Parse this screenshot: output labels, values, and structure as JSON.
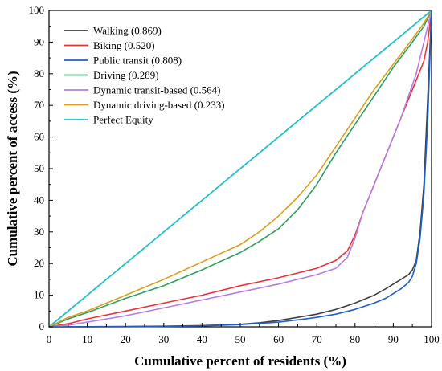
{
  "chart_data": {
    "type": "line",
    "xlabel": "Cumulative percent of residents (%)",
    "ylabel": "Cumulative percent of access (%)",
    "xlim": [
      0,
      100
    ],
    "ylim": [
      0,
      100
    ],
    "xticks": [
      "0",
      "10",
      "20",
      "30",
      "40",
      "50",
      "60",
      "70",
      "80",
      "90",
      "100"
    ],
    "yticks": [
      "0",
      "10",
      "20",
      "30",
      "40",
      "50",
      "60",
      "70",
      "80",
      "90",
      "100"
    ],
    "legend_position": "top-left",
    "grid": false,
    "series": [
      {
        "name": "Walking (0.869)",
        "color": "#404040",
        "x": [
          0,
          10,
          20,
          30,
          40,
          50,
          55,
          60,
          65,
          70,
          75,
          80,
          85,
          88,
          90,
          92,
          94,
          95,
          96,
          97,
          98,
          99,
          100
        ],
        "y": [
          0,
          0.05,
          0.1,
          0.2,
          0.4,
          0.8,
          1.3,
          2,
          3,
          4,
          5.5,
          7.5,
          10,
          12,
          13.5,
          15,
          16.5,
          18,
          21,
          30,
          45,
          72,
          100
        ]
      },
      {
        "name": "Biking (0.520)",
        "color": "#e8333a",
        "x": [
          0,
          5,
          10,
          20,
          30,
          40,
          50,
          60,
          65,
          70,
          75,
          78,
          80,
          82,
          85,
          88,
          90,
          92,
          94,
          96,
          98,
          99,
          100
        ],
        "y": [
          0,
          1,
          2.5,
          5,
          7.5,
          10,
          13,
          15.5,
          17,
          18.5,
          21,
          24,
          29,
          36,
          45,
          54,
          60,
          66,
          72,
          78,
          84,
          90,
          100
        ]
      },
      {
        "name": "Public transit (0.808)",
        "color": "#1f5fc8",
        "x": [
          0,
          10,
          20,
          30,
          40,
          50,
          60,
          65,
          70,
          75,
          80,
          85,
          88,
          90,
          92,
          94,
          95,
          96,
          97,
          98,
          99,
          100
        ],
        "y": [
          0,
          0,
          0.05,
          0.1,
          0.3,
          0.7,
          1.5,
          2.2,
          3,
          4,
          5.5,
          7.5,
          9,
          10.5,
          12,
          14,
          16,
          20,
          28,
          42,
          65,
          100
        ]
      },
      {
        "name": "Driving (0.289)",
        "color": "#2fa060",
        "x": [
          0,
          5,
          10,
          20,
          30,
          40,
          50,
          55,
          60,
          65,
          70,
          75,
          80,
          85,
          90,
          95,
          98,
          100
        ],
        "y": [
          0,
          2.5,
          4.5,
          9,
          13,
          18,
          23.5,
          27,
          31,
          37,
          45,
          55,
          64,
          73,
          82,
          90,
          95,
          100
        ]
      },
      {
        "name": "Dynamic transit-based (0.564)",
        "color": "#b77fe3",
        "x": [
          0,
          5,
          10,
          20,
          30,
          40,
          50,
          60,
          65,
          70,
          75,
          78,
          80,
          82,
          85,
          88,
          90,
          92,
          94,
          96,
          97,
          98,
          100
        ],
        "y": [
          0,
          0.5,
          1.5,
          3.5,
          6,
          8.5,
          11,
          13.5,
          15,
          16.5,
          18.5,
          22,
          28,
          36,
          45,
          54,
          60,
          66,
          73,
          80,
          85,
          90,
          100
        ]
      },
      {
        "name": "Dynamic driving-based (0.233)",
        "color": "#d9a020",
        "x": [
          0,
          5,
          10,
          20,
          30,
          40,
          50,
          55,
          60,
          65,
          70,
          75,
          80,
          85,
          90,
          95,
          98,
          100
        ],
        "y": [
          0,
          3,
          5,
          10,
          15,
          20.5,
          26,
          30,
          35,
          41,
          48,
          57,
          66,
          75,
          83,
          91,
          96,
          100
        ]
      },
      {
        "name": "Perfect Equity",
        "color": "#20c0c8",
        "x": [
          0,
          100
        ],
        "y": [
          0,
          100
        ]
      }
    ]
  }
}
